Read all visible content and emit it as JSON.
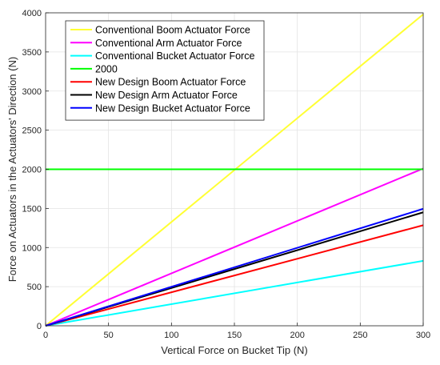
{
  "chart_data": {
    "type": "line",
    "title": "",
    "xlabel": "Vertical Force on Bucket Tip (N)",
    "ylabel": "Force on Actuators in the Actuators' Direction (N)",
    "xlim": [
      0,
      300
    ],
    "ylim": [
      0,
      4000
    ],
    "xticks": [
      "0",
      "50",
      "100",
      "150",
      "200",
      "250",
      "300"
    ],
    "yticks": [
      "0",
      "500",
      "1000",
      "1500",
      "2000",
      "2500",
      "3000",
      "3500",
      "4000"
    ],
    "grid": true,
    "legend_position": "top-left",
    "series": [
      {
        "name": "Conventional Boom Actuator Force",
        "color": "#ffff33",
        "x": [
          0,
          300
        ],
        "y": [
          0,
          3980
        ]
      },
      {
        "name": "Conventional Arm Actuator Force",
        "color": "#ff00ff",
        "x": [
          0,
          300
        ],
        "y": [
          0,
          2010
        ]
      },
      {
        "name": "Conventional Bucket Actuator Force",
        "color": "#00ffff",
        "x": [
          0,
          300
        ],
        "y": [
          0,
          830
        ]
      },
      {
        "name": "2000",
        "color": "#00ff00",
        "x": [
          0,
          300
        ],
        "y": [
          2000,
          2000
        ]
      },
      {
        "name": "New Design Boom Actuator Force",
        "color": "#ff0000",
        "x": [
          0,
          300
        ],
        "y": [
          0,
          1285
        ]
      },
      {
        "name": "New Design Arm Actuator Force",
        "color": "#000000",
        "x": [
          0,
          300
        ],
        "y": [
          0,
          1450
        ]
      },
      {
        "name": "New Design Bucket Actuator Force",
        "color": "#0000ff",
        "x": [
          0,
          300
        ],
        "y": [
          0,
          1495
        ]
      }
    ]
  }
}
